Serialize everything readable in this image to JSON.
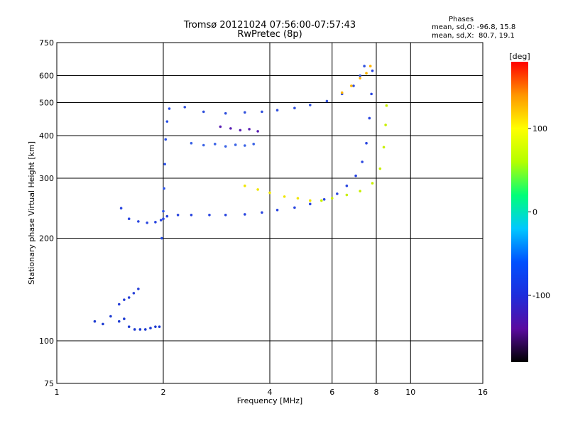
{
  "title": "Tromsø 20121024 07:56:00-07:57:43",
  "subtitle": "RwPretec (8p)",
  "stats": {
    "heading": "Phases",
    "line_o": "mean, sd,O: -96.8, 15.8",
    "line_x": "mean, sd,X:  80.7, 19.1"
  },
  "chart_data": {
    "type": "scatter",
    "title": "Tromsø 20121024 07:56:00-07:57:43",
    "subtitle": "RwPretec (8p)",
    "xlabel": "Frequency [MHz]",
    "ylabel": "Stationary phase Virtual Height [km]",
    "x_scale": "log",
    "y_scale": "log",
    "xlim": [
      1,
      16
    ],
    "ylim": [
      75,
      750
    ],
    "x_ticks": [
      1,
      2,
      4,
      6,
      8,
      10,
      16
    ],
    "y_ticks": [
      75,
      100,
      200,
      300,
      400,
      500,
      600,
      750
    ],
    "grid": true,
    "colorbar": {
      "label": "[deg]",
      "range": [
        -180,
        180
      ],
      "ticks": [
        -100,
        0,
        100
      ],
      "colors": [
        "#000000",
        "#5a0aa0",
        "#1e2ddc",
        "#0050ff",
        "#00c8ff",
        "#00ff78",
        "#b4ff00",
        "#ffff00",
        "#ff9600",
        "#ff0000"
      ]
    },
    "series": [
      {
        "phase": -115,
        "color": "#1e3cd2",
        "x": [
          1.28,
          1.35,
          1.42,
          1.5,
          1.55,
          1.6,
          1.66,
          1.72,
          1.78,
          1.84,
          1.9,
          1.95
        ],
        "y": [
          114,
          112,
          118,
          114,
          116,
          110,
          108,
          108,
          108,
          109,
          110,
          110
        ]
      },
      {
        "phase": -110,
        "color": "#2840d8",
        "x": [
          1.5,
          1.55,
          1.6,
          1.65,
          1.7
        ],
        "y": [
          128,
          132,
          134,
          138,
          142
        ]
      },
      {
        "phase": -105,
        "color": "#2a46e0",
        "x": [
          1.52,
          1.6,
          1.7,
          1.8,
          1.9,
          1.97,
          2.0,
          2.05,
          2.2,
          2.4,
          2.7,
          3.0,
          3.4,
          3.8,
          4.2,
          4.7,
          5.2,
          5.7,
          6.2,
          6.6,
          7.0,
          7.3,
          7.5,
          7.65,
          7.75,
          7.8
        ],
        "y": [
          245,
          228,
          224,
          222,
          223,
          226,
          228,
          232,
          234,
          234,
          234,
          234,
          235,
          238,
          242,
          246,
          252,
          260,
          270,
          285,
          305,
          335,
          380,
          450,
          530,
          620
        ]
      },
      {
        "phase": -100,
        "color": "#2850e8",
        "x": [
          1.98,
          2.0,
          2.01,
          2.02,
          2.03,
          2.05,
          2.08
        ],
        "y": [
          200,
          240,
          280,
          330,
          390,
          440,
          480
        ]
      },
      {
        "phase": -108,
        "color": "#3050dc",
        "x": [
          2.3,
          2.6,
          3.0,
          3.4,
          3.8,
          4.2,
          4.7,
          5.2,
          5.8,
          6.4,
          6.9,
          7.2,
          7.4
        ],
        "y": [
          485,
          470,
          465,
          468,
          470,
          475,
          482,
          492,
          505,
          530,
          560,
          600,
          640
        ]
      },
      {
        "phase": -95,
        "color": "#3c64e6",
        "x": [
          2.4,
          2.6,
          2.8,
          3.0,
          3.2,
          3.4,
          3.6
        ],
        "y": [
          380,
          375,
          378,
          372,
          376,
          374,
          378
        ]
      },
      {
        "phase": -125,
        "color": "#5a1eb4",
        "x": [
          2.9,
          3.1,
          3.3,
          3.5,
          3.7
        ],
        "y": [
          425,
          420,
          415,
          418,
          412
        ]
      },
      {
        "phase": 95,
        "color": "#f0e600",
        "x": [
          3.4,
          3.7,
          4.0,
          4.4,
          4.8,
          5.2
        ],
        "y": [
          285,
          278,
          272,
          265,
          262,
          258
        ]
      },
      {
        "phase": 80,
        "color": "#c8f000",
        "x": [
          5.6,
          6.0,
          6.6,
          7.2,
          7.8,
          8.2,
          8.4,
          8.5,
          8.55
        ],
        "y": [
          258,
          262,
          268,
          275,
          290,
          320,
          370,
          430,
          490
        ]
      },
      {
        "phase": 110,
        "color": "#ffb400",
        "x": [
          6.4,
          6.8,
          7.2,
          7.5,
          7.7
        ],
        "y": [
          535,
          560,
          590,
          610,
          640
        ]
      }
    ]
  }
}
